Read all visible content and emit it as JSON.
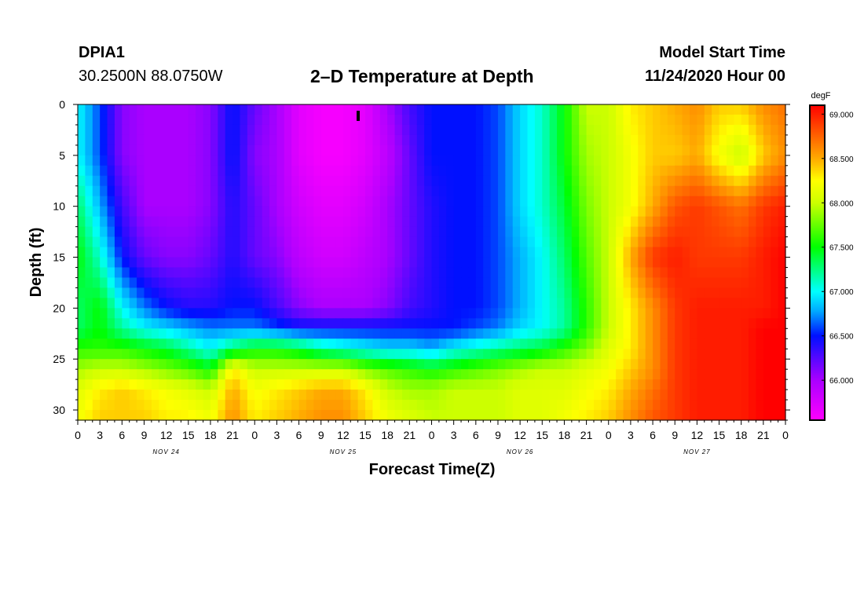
{
  "header": {
    "station": "DPIA1",
    "coordinates": "30.2500N 88.0750W",
    "title": "2–D Temperature at Depth",
    "model_start_label": "Model Start Time",
    "model_start_value": "11/24/2020 Hour 00"
  },
  "colorbar": {
    "unit": "degF",
    "ticks": [
      "66.000",
      "66.500",
      "67.000",
      "67.500",
      "68.000",
      "68.500",
      "69.000"
    ],
    "min": 65.55,
    "max": 69.1,
    "stops": [
      {
        "v": 65.55,
        "color": "#ff00ff"
      },
      {
        "v": 66.0,
        "color": "#aa00ff"
      },
      {
        "v": 66.5,
        "color": "#0010ff"
      },
      {
        "v": 66.78,
        "color": "#00aaff"
      },
      {
        "v": 67.0,
        "color": "#00ffff"
      },
      {
        "v": 67.5,
        "color": "#00ff00"
      },
      {
        "v": 68.0,
        "color": "#ccff00"
      },
      {
        "v": 68.25,
        "color": "#ffff00"
      },
      {
        "v": 68.5,
        "color": "#ffaa00"
      },
      {
        "v": 69.1,
        "color": "#ff0000"
      }
    ]
  },
  "chart_data": {
    "type": "heatmap",
    "title": "2–D Temperature at Depth",
    "xlabel": "Forecast Time(Z)",
    "ylabel": "Depth (ft)",
    "x_tick_labels": [
      "0",
      "3",
      "6",
      "9",
      "12",
      "15",
      "18",
      "21",
      "0",
      "3",
      "6",
      "9",
      "12",
      "15",
      "18",
      "21",
      "0",
      "3",
      "6",
      "9",
      "12",
      "15",
      "18",
      "21",
      "0",
      "3",
      "6",
      "9",
      "12",
      "15",
      "18",
      "21",
      "0"
    ],
    "date_labels": [
      {
        "label": "NOV 24",
        "hour": 12
      },
      {
        "label": "NOV 25",
        "hour": 36
      },
      {
        "label": "NOV 26",
        "hour": 60
      },
      {
        "label": "NOV 27",
        "hour": 84
      }
    ],
    "xlim": [
      0,
      96
    ],
    "y_tick_labels": [
      "0",
      "5",
      "10",
      "15",
      "20",
      "25",
      "30"
    ],
    "y_ticks": [
      0,
      5,
      10,
      15,
      20,
      25,
      30
    ],
    "ylim": [
      0,
      31
    ],
    "hours": [
      0,
      3,
      6,
      9,
      12,
      15,
      18,
      21,
      24,
      27,
      30,
      33,
      36,
      39,
      42,
      45,
      48,
      51,
      54,
      57,
      60,
      63,
      66,
      69,
      72,
      75,
      78,
      81,
      84,
      87,
      90,
      93,
      96
    ],
    "depths": [
      0,
      5,
      10,
      15,
      20,
      22,
      24,
      26,
      28,
      31
    ],
    "temperature_degF": [
      [
        67.0,
        66.6,
        66.1,
        66.0,
        66.0,
        66.0,
        66.1,
        66.5,
        66.2,
        66.0,
        65.7,
        65.6,
        65.6,
        65.7,
        66.0,
        66.3,
        66.5,
        66.5,
        66.5,
        66.6,
        66.9,
        67.1,
        67.5,
        68.0,
        68.0,
        68.3,
        68.4,
        68.5,
        68.6,
        68.4,
        68.4,
        68.6,
        68.7
      ],
      [
        67.0,
        66.6,
        66.1,
        66.0,
        66.0,
        66.0,
        66.1,
        66.5,
        66.1,
        66.0,
        65.7,
        65.6,
        65.6,
        65.7,
        65.9,
        66.2,
        66.5,
        66.5,
        66.5,
        66.6,
        66.9,
        67.1,
        67.5,
        67.9,
        68.0,
        68.2,
        68.4,
        68.4,
        68.5,
        68.2,
        68.0,
        68.4,
        68.6
      ],
      [
        67.3,
        66.8,
        66.3,
        66.0,
        66.0,
        66.0,
        66.1,
        66.4,
        66.2,
        66.0,
        65.8,
        65.7,
        65.7,
        65.8,
        66.0,
        66.2,
        66.4,
        66.5,
        66.5,
        66.6,
        66.9,
        67.1,
        67.4,
        67.8,
        68.0,
        68.2,
        68.5,
        68.8,
        68.9,
        68.8,
        68.7,
        68.9,
        69.0
      ],
      [
        67.5,
        67.1,
        66.5,
        66.2,
        66.1,
        66.1,
        66.2,
        66.4,
        66.2,
        66.1,
        65.9,
        65.8,
        65.8,
        65.9,
        66.0,
        66.2,
        66.4,
        66.5,
        66.5,
        66.6,
        66.8,
        67.0,
        67.3,
        67.7,
        68.0,
        68.5,
        68.9,
        69.0,
        68.9,
        68.9,
        68.9,
        69.0,
        69.1
      ],
      [
        67.3,
        67.5,
        67.0,
        66.7,
        66.5,
        66.4,
        66.4,
        66.5,
        66.5,
        66.3,
        66.1,
        66.0,
        66.0,
        66.0,
        66.1,
        66.3,
        66.4,
        66.5,
        66.5,
        66.6,
        66.8,
        67.0,
        67.2,
        67.6,
        68.0,
        68.3,
        68.6,
        68.9,
        69.0,
        69.0,
        69.0,
        69.0,
        69.1
      ],
      [
        67.3,
        67.5,
        67.2,
        67.0,
        66.9,
        66.8,
        66.7,
        66.7,
        66.7,
        66.6,
        66.5,
        66.5,
        66.5,
        66.5,
        66.5,
        66.5,
        66.5,
        66.5,
        66.6,
        66.7,
        66.9,
        67.0,
        67.2,
        67.6,
        68.0,
        68.3,
        68.6,
        68.9,
        69.0,
        69.0,
        69.0,
        69.1,
        69.1
      ],
      [
        67.6,
        67.6,
        67.6,
        67.5,
        67.4,
        67.2,
        67.0,
        67.3,
        67.5,
        67.5,
        67.4,
        67.2,
        67.1,
        67.0,
        66.9,
        66.9,
        66.8,
        67.0,
        67.1,
        67.2,
        67.3,
        67.4,
        67.6,
        67.8,
        68.1,
        68.3,
        68.6,
        68.9,
        69.0,
        69.0,
        69.0,
        69.1,
        69.1
      ],
      [
        67.9,
        68.0,
        68.0,
        67.9,
        67.8,
        67.7,
        67.5,
        68.3,
        68.0,
        68.0,
        68.0,
        68.0,
        68.0,
        67.8,
        67.7,
        67.6,
        67.5,
        67.6,
        67.7,
        67.8,
        67.9,
        68.0,
        68.0,
        68.1,
        68.2,
        68.4,
        68.6,
        68.9,
        69.0,
        69.0,
        69.0,
        69.1,
        69.1
      ],
      [
        68.1,
        68.3,
        68.4,
        68.3,
        68.2,
        68.1,
        68.0,
        68.5,
        68.2,
        68.3,
        68.4,
        68.5,
        68.5,
        68.3,
        68.0,
        67.9,
        67.9,
        68.0,
        68.0,
        68.0,
        68.1,
        68.1,
        68.1,
        68.2,
        68.3,
        68.5,
        68.7,
        68.9,
        69.0,
        69.0,
        69.0,
        69.1,
        69.1
      ],
      [
        68.2,
        68.4,
        68.4,
        68.4,
        68.3,
        68.3,
        68.2,
        68.6,
        68.3,
        68.4,
        68.5,
        68.6,
        68.6,
        68.4,
        68.2,
        68.1,
        68.0,
        68.0,
        68.0,
        68.0,
        68.1,
        68.1,
        68.2,
        68.3,
        68.4,
        68.6,
        68.8,
        68.9,
        69.0,
        69.0,
        69.0,
        69.1,
        69.1
      ]
    ]
  }
}
